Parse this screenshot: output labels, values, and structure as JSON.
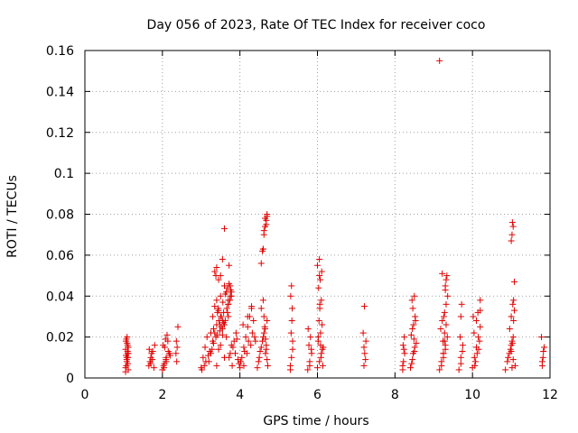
{
  "chart_data": {
    "type": "scatter",
    "title": "Day 056 of 2023, Rate Of TEC Index for receiver coco",
    "xlabel": "GPS time / hours",
    "ylabel": "ROTI / TECUs",
    "xlim": [
      0,
      12
    ],
    "ylim": [
      0,
      0.16
    ],
    "x_ticks": [
      "0",
      "2",
      "4",
      "6",
      "8",
      "10",
      "12"
    ],
    "y_ticks": [
      "0",
      "0.02",
      "0.04",
      "0.06",
      "0.08",
      "0.1",
      "0.12",
      "0.14",
      "0.16"
    ],
    "grid": true,
    "marker": "+",
    "color": "#e00000",
    "series": [
      {
        "x": [
          1.05,
          1.08,
          1.1,
          1.12,
          1.06,
          1.09,
          1.11,
          1.07,
          1.05,
          1.1,
          1.12,
          1.08,
          1.06,
          1.1,
          1.09,
          1.11,
          1.07,
          1.05,
          1.12,
          1.08,
          1.65,
          1.7,
          1.75,
          1.8,
          1.68,
          1.72,
          1.78,
          1.66,
          1.74,
          1.7,
          2.0,
          2.05,
          2.1,
          2.15,
          2.02,
          2.08,
          2.12,
          2.18,
          2.04,
          2.1,
          2.06,
          2.14,
          2.2,
          2.03,
          2.09,
          2.35,
          2.38,
          2.4,
          2.37,
          2.36,
          3.0,
          3.05,
          3.1,
          3.15,
          3.2,
          3.25,
          3.3,
          3.35,
          3.4,
          3.45,
          3.5,
          3.55,
          3.6,
          3.65,
          3.7,
          3.75,
          3.8,
          3.85,
          3.9,
          3.95,
          3.02,
          3.12,
          3.22,
          3.32,
          3.42,
          3.52,
          3.62,
          3.72,
          3.82,
          3.92,
          3.08,
          3.18,
          3.28,
          3.38,
          3.48,
          3.58,
          3.68,
          3.78,
          3.88,
          3.98,
          3.3,
          3.35,
          3.4,
          3.45,
          3.5,
          3.55,
          3.6,
          3.65,
          3.7,
          3.75,
          3.42,
          3.48,
          3.52,
          3.56,
          3.62,
          3.68,
          3.72,
          3.76,
          3.38,
          3.44,
          3.25,
          3.32,
          3.4,
          3.46,
          3.5,
          3.58,
          3.66,
          3.7,
          3.74,
          3.78,
          3.35,
          3.4,
          3.45,
          3.5,
          3.55,
          3.6,
          3.72,
          3.75,
          3.78,
          3.7,
          4.0,
          4.05,
          4.1,
          4.15,
          4.2,
          4.25,
          4.3,
          4.35,
          4.02,
          4.12,
          4.22,
          4.32,
          4.08,
          4.18,
          4.28,
          4.38,
          4.1,
          4.2,
          4.3,
          4.4,
          4.45,
          4.5,
          4.55,
          4.6,
          4.65,
          4.7,
          4.48,
          4.52,
          4.58,
          4.62,
          4.66,
          4.68,
          4.55,
          4.6,
          4.62,
          4.64,
          4.66,
          4.68,
          4.7,
          4.72,
          4.55,
          4.58,
          4.6,
          4.62,
          4.65,
          4.68,
          4.7,
          5.3,
          5.33,
          5.36,
          5.32,
          5.34,
          5.35,
          5.31,
          5.33,
          5.3,
          5.36,
          5.75,
          5.8,
          5.85,
          5.78,
          5.82,
          5.76,
          5.84,
          5.8,
          6.0,
          6.05,
          6.1,
          6.15,
          6.02,
          6.08,
          6.12,
          6.04,
          6.06,
          6.1,
          6.03,
          6.07,
          6.11,
          6.05,
          6.09,
          6.13,
          6.02,
          6.06,
          6.14,
          6.08,
          7.2,
          7.22,
          7.25,
          7.18,
          7.21,
          7.24,
          7.2,
          8.2,
          8.22,
          8.25,
          8.21,
          8.24,
          8.2,
          8.23,
          8.4,
          8.45,
          8.5,
          8.55,
          8.42,
          8.48,
          8.52,
          8.46,
          8.44,
          8.5,
          8.53,
          8.47,
          8.43,
          8.49,
          8.51,
          8.45,
          9.15,
          9.2,
          9.25,
          9.3,
          9.35,
          9.18,
          9.22,
          9.28,
          9.32,
          9.36,
          9.2,
          9.25,
          9.3,
          9.24,
          9.28,
          9.32,
          9.26,
          9.3,
          9.34,
          9.22,
          9.65,
          9.7,
          9.75,
          9.68,
          9.72,
          9.74,
          9.7,
          10.0,
          10.05,
          10.1,
          10.15,
          10.2,
          10.02,
          10.08,
          10.12,
          10.18,
          10.04,
          10.1,
          10.14,
          10.06,
          10.16,
          10.2,
          10.85,
          10.9,
          10.95,
          11.0,
          11.05,
          11.1,
          10.92,
          10.98,
          11.02,
          11.06,
          11.0,
          11.04,
          11.08,
          10.96,
          11.02,
          11.05,
          11.0,
          11.03,
          11.06,
          11.08,
          11.8,
          11.82,
          11.85,
          11.78,
          11.83,
          11.8,
          9.15,
          9.25,
          9.28,
          11.0,
          11.02,
          11.05,
          11.03,
          4.6,
          4.62,
          4.65,
          4.68,
          4.7,
          3.55,
          3.6,
          6.0,
          6.05,
          9.3,
          9.32,
          9.7,
          10.2
        ],
        "y": [
          0.005,
          0.008,
          0.012,
          0.015,
          0.018,
          0.02,
          0.01,
          0.006,
          0.014,
          0.016,
          0.004,
          0.009,
          0.011,
          0.013,
          0.017,
          0.007,
          0.019,
          0.003,
          0.012,
          0.01,
          0.006,
          0.01,
          0.013,
          0.016,
          0.008,
          0.012,
          0.005,
          0.014,
          0.009,
          0.007,
          0.004,
          0.007,
          0.01,
          0.013,
          0.016,
          0.019,
          0.021,
          0.012,
          0.005,
          0.008,
          0.015,
          0.018,
          0.011,
          0.006,
          0.009,
          0.012,
          0.015,
          0.025,
          0.008,
          0.018,
          0.005,
          0.01,
          0.015,
          0.02,
          0.008,
          0.012,
          0.018,
          0.022,
          0.006,
          0.014,
          0.016,
          0.024,
          0.01,
          0.02,
          0.03,
          0.012,
          0.006,
          0.018,
          0.022,
          0.009,
          0.004,
          0.008,
          0.013,
          0.017,
          0.021,
          0.025,
          0.028,
          0.01,
          0.015,
          0.019,
          0.006,
          0.011,
          0.014,
          0.02,
          0.023,
          0.027,
          0.032,
          0.016,
          0.012,
          0.007,
          0.03,
          0.035,
          0.038,
          0.033,
          0.04,
          0.028,
          0.045,
          0.042,
          0.036,
          0.04,
          0.032,
          0.026,
          0.03,
          0.037,
          0.041,
          0.044,
          0.046,
          0.043,
          0.05,
          0.034,
          0.022,
          0.024,
          0.026,
          0.028,
          0.03,
          0.032,
          0.034,
          0.036,
          0.038,
          0.04,
          0.052,
          0.054,
          0.048,
          0.05,
          0.058,
          0.073,
          0.055,
          0.045,
          0.042,
          0.038,
          0.005,
          0.01,
          0.015,
          0.02,
          0.025,
          0.03,
          0.035,
          0.028,
          0.008,
          0.013,
          0.018,
          0.022,
          0.026,
          0.012,
          0.016,
          0.02,
          0.006,
          0.03,
          0.034,
          0.018,
          0.005,
          0.01,
          0.015,
          0.02,
          0.024,
          0.028,
          0.008,
          0.013,
          0.018,
          0.022,
          0.012,
          0.016,
          0.034,
          0.038,
          0.03,
          0.025,
          0.019,
          0.014,
          0.009,
          0.006,
          0.056,
          0.062,
          0.063,
          0.07,
          0.074,
          0.077,
          0.079,
          0.006,
          0.01,
          0.018,
          0.022,
          0.028,
          0.034,
          0.04,
          0.045,
          0.004,
          0.014,
          0.004,
          0.008,
          0.012,
          0.016,
          0.02,
          0.024,
          0.014,
          0.006,
          0.005,
          0.008,
          0.012,
          0.015,
          0.018,
          0.022,
          0.026,
          0.028,
          0.034,
          0.038,
          0.044,
          0.048,
          0.052,
          0.058,
          0.01,
          0.014,
          0.02,
          0.036,
          0.006,
          0.016,
          0.006,
          0.012,
          0.018,
          0.022,
          0.035,
          0.009,
          0.015,
          0.004,
          0.008,
          0.012,
          0.016,
          0.02,
          0.006,
          0.014,
          0.005,
          0.009,
          0.013,
          0.017,
          0.021,
          0.026,
          0.03,
          0.034,
          0.038,
          0.04,
          0.028,
          0.012,
          0.007,
          0.019,
          0.015,
          0.024,
          0.004,
          0.008,
          0.012,
          0.016,
          0.02,
          0.024,
          0.028,
          0.032,
          0.036,
          0.04,
          0.006,
          0.01,
          0.014,
          0.018,
          0.022,
          0.026,
          0.03,
          0.043,
          0.05,
          0.051,
          0.004,
          0.01,
          0.016,
          0.02,
          0.036,
          0.013,
          0.007,
          0.005,
          0.01,
          0.015,
          0.02,
          0.025,
          0.03,
          0.008,
          0.012,
          0.018,
          0.022,
          0.028,
          0.032,
          0.006,
          0.014,
          0.038,
          0.004,
          0.008,
          0.012,
          0.016,
          0.02,
          0.006,
          0.01,
          0.014,
          0.018,
          0.028,
          0.03,
          0.036,
          0.033,
          0.024,
          0.005,
          0.009,
          0.013,
          0.017,
          0.038,
          0.047,
          0.006,
          0.01,
          0.015,
          0.02,
          0.013,
          0.008,
          0.155,
          0.012,
          0.018,
          0.067,
          0.07,
          0.074,
          0.076,
          0.063,
          0.072,
          0.078,
          0.075,
          0.08,
          0.021,
          0.026,
          0.055,
          0.05,
          0.045,
          0.048,
          0.03,
          0.033
        ]
      }
    ]
  }
}
